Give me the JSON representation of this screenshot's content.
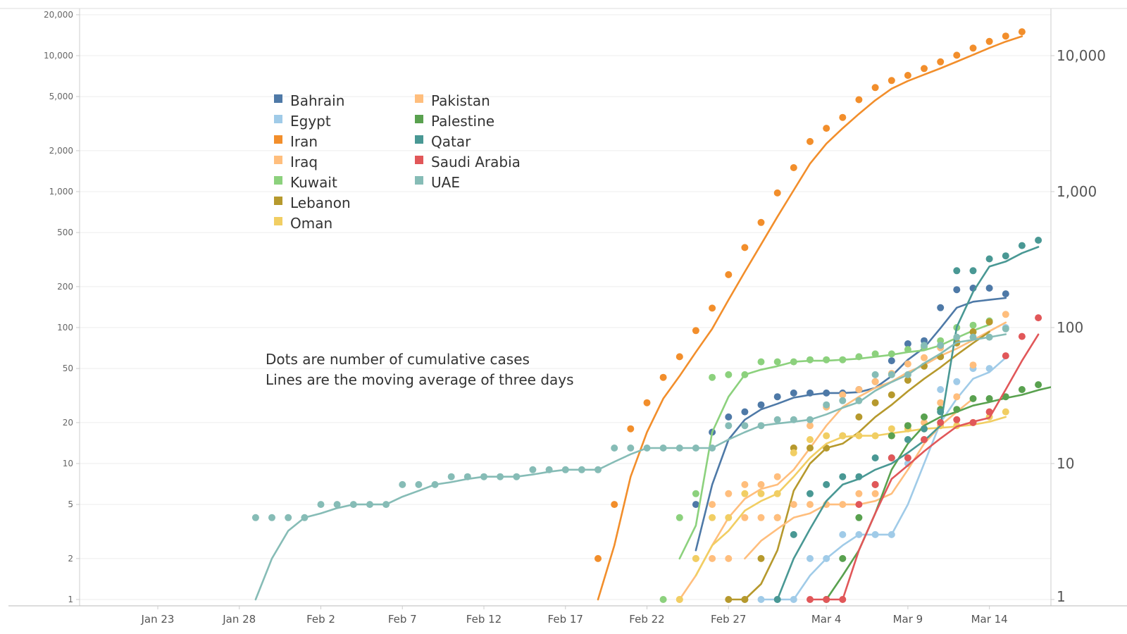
{
  "chart_data": {
    "type": "line",
    "title": "",
    "xlabel": "",
    "ylabel": "",
    "y_scale": "log",
    "ylim": [
      1,
      20000
    ],
    "grid": true,
    "legend_position": "top-left",
    "x_ticks": [
      "Jan 23",
      "Jan 28",
      "Feb 2",
      "Feb 7",
      "Feb 12",
      "Feb 17",
      "Feb 22",
      "Feb 27",
      "Mar 4",
      "Mar 9",
      "Mar 14"
    ],
    "x_tick_dates": [
      "2020-01-23",
      "2020-01-28",
      "2020-02-02",
      "2020-02-07",
      "2020-02-12",
      "2020-02-17",
      "2020-02-22",
      "2020-02-27",
      "2020-03-04",
      "2020-03-09",
      "2020-03-14"
    ],
    "y_ticks_left": [
      "1",
      "2",
      "5",
      "10",
      "20",
      "50",
      "100",
      "200",
      "500",
      "1,000",
      "2,000",
      "5,000",
      "10,000",
      "20,000"
    ],
    "y_ticks_right": [
      "1",
      "10",
      "100",
      "1,000",
      "10,000"
    ],
    "annotations": [
      "Dots are number of cumulative cases",
      "Lines are the moving average of three days"
    ],
    "series": [
      {
        "name": "Bahrain",
        "color": "#4e79a7",
        "start": "2020-02-24",
        "dots": [
          null,
          5,
          17,
          22,
          24,
          27,
          31,
          33,
          33,
          33,
          33,
          35,
          40,
          57,
          76,
          80,
          140,
          190,
          195,
          195,
          177
        ],
        "line": [
          null,
          2.3,
          7,
          15,
          21,
          25,
          27.5,
          30.5,
          32,
          33,
          33,
          33.5,
          36,
          44,
          58,
          71,
          99,
          140,
          155,
          160,
          165
        ]
      },
      {
        "name": "Egypt",
        "color": "#a0cbe8",
        "start": "2020-02-28",
        "dots": [
          1,
          1,
          1,
          1,
          2,
          2,
          3,
          3,
          3,
          3,
          10,
          15,
          35,
          40,
          50,
          50,
          100
        ],
        "line": [
          null,
          1,
          1,
          1,
          1.5,
          2,
          2.5,
          3,
          3,
          3,
          5,
          10,
          20,
          30,
          42,
          47,
          60
        ]
      },
      {
        "name": "Iran",
        "color": "#f28e2b",
        "start": "2020-02-19",
        "dots": [
          2,
          5,
          18,
          28,
          43,
          61,
          95,
          139,
          245,
          388,
          593,
          978,
          1501,
          2336,
          2922,
          3513,
          4747,
          5823,
          6566,
          7161,
          8042,
          9000,
          10075,
          11364,
          12729,
          13938,
          14991
        ],
        "line": [
          1,
          2.5,
          8,
          17,
          30,
          44,
          66,
          98,
          160,
          257,
          409,
          653,
          1024,
          1605,
          2253,
          2924,
          3727,
          4694,
          5712,
          6517,
          7256,
          8068,
          9039,
          10146,
          11389,
          12677,
          13887
        ]
      },
      {
        "name": "Iraq",
        "color": "#ffbe7d",
        "start": "2020-02-24",
        "dots": [
          1,
          2,
          5,
          6,
          7,
          7,
          8,
          13,
          19,
          26,
          32,
          35,
          40,
          46,
          54,
          60,
          71,
          79,
          93,
          110,
          125
        ],
        "line": [
          1,
          1.5,
          2.5,
          4,
          5.5,
          6.5,
          7,
          9,
          13,
          19,
          26,
          31,
          36,
          40,
          47,
          53,
          62,
          70,
          81,
          94,
          109
        ]
      },
      {
        "name": "Kuwait",
        "color": "#8cd17d",
        "start": "2020-02-23",
        "dots": [
          1,
          4,
          6,
          43,
          45,
          45,
          56,
          56,
          56,
          58,
          58,
          58,
          61,
          64,
          64,
          69,
          72,
          80,
          100,
          104,
          112
        ],
        "line": [
          null,
          2,
          3.5,
          17,
          31,
          45,
          49,
          52,
          56,
          57,
          57,
          58,
          59,
          61,
          63,
          66,
          68,
          74,
          84,
          95,
          105
        ]
      },
      {
        "name": "Lebanon",
        "color": "#b6992d",
        "start": "2020-02-27",
        "dots": [
          1,
          1,
          2,
          4,
          13,
          13,
          13,
          16,
          22,
          28,
          32,
          41,
          52,
          61,
          77,
          93,
          110
        ],
        "line": [
          1,
          1,
          1.3,
          2.3,
          6.3,
          10,
          13,
          14,
          17,
          22,
          27,
          34,
          42,
          51,
          63,
          77,
          93
        ]
      },
      {
        "name": "Oman",
        "color": "#f1ce63",
        "start": "2020-02-24",
        "dots": [
          1,
          2,
          4,
          4,
          6,
          6,
          6,
          12,
          15,
          16,
          16,
          16,
          16,
          18,
          18,
          18,
          19,
          19,
          20,
          22,
          24
        ],
        "line": [
          null,
          1.5,
          2.5,
          3.2,
          4.5,
          5.3,
          6,
          8,
          11,
          14,
          15.7,
          16,
          16,
          16.7,
          17.3,
          18,
          18.3,
          18.7,
          19.3,
          20.3,
          22
        ]
      },
      {
        "name": "Pakistan",
        "color": "#ffbe7d",
        "start": "2020-02-26",
        "dots": [
          2,
          2,
          4,
          4,
          4,
          5,
          5,
          5,
          5,
          6,
          6,
          16,
          19,
          20,
          28,
          31,
          53
        ],
        "line": [
          null,
          null,
          2,
          2.7,
          3.3,
          4,
          4.3,
          5,
          5,
          5,
          5.3,
          6,
          9,
          14,
          19,
          24,
          30
        ]
      },
      {
        "name": "Palestine",
        "color": "#59a14f",
        "start": "2020-03-04",
        "dots": [
          1,
          2,
          4,
          7,
          16,
          19,
          22,
          25,
          25,
          30,
          30,
          31,
          35,
          38,
          38,
          38
        ],
        "line": [
          1,
          1.5,
          2.3,
          4.3,
          9,
          14,
          19,
          22,
          24,
          26.7,
          28.3,
          30.3,
          32,
          34.7,
          37,
          38
        ]
      },
      {
        "name": "Qatar",
        "color": "#499894",
        "start": "2020-03-01",
        "dots": [
          1,
          3,
          6,
          7,
          8,
          8,
          11,
          11,
          15,
          18,
          24,
          262,
          262,
          320,
          337,
          401,
          439
        ],
        "line": [
          1,
          2,
          3.3,
          5.3,
          7,
          7.7,
          9,
          10,
          12,
          14.7,
          19,
          101,
          183,
          281,
          306,
          353,
          392
        ]
      },
      {
        "name": "Saudi Arabia",
        "color": "#e15759",
        "start": "2020-03-03",
        "dots": [
          1,
          1,
          1,
          5,
          7,
          11,
          11,
          15,
          20,
          21,
          20,
          24,
          62,
          86,
          118
        ],
        "line": [
          1,
          1,
          1,
          2.3,
          4.3,
          7.7,
          9.7,
          12.3,
          15.3,
          18.7,
          20.3,
          21.7,
          35,
          57,
          89
        ]
      },
      {
        "name": "UAE",
        "color": "#86bcb6",
        "start": "2020-01-29",
        "dots": [
          4,
          4,
          4,
          4,
          5,
          5,
          5,
          5,
          5,
          7,
          7,
          7,
          8,
          8,
          8,
          8,
          8,
          9,
          9,
          9,
          9,
          9,
          13,
          13,
          13,
          13,
          13,
          13,
          13,
          19,
          19,
          19,
          21,
          21,
          21,
          27,
          29,
          29,
          45,
          45,
          45,
          74,
          74,
          85,
          85,
          85,
          98
        ],
        "line": [
          1,
          2,
          3.2,
          4,
          4.3,
          4.7,
          5,
          5,
          5,
          5.7,
          6.3,
          7,
          7.3,
          7.7,
          8,
          8,
          8,
          8.3,
          8.7,
          9,
          9,
          9,
          10.3,
          11.7,
          13,
          13,
          13,
          13,
          13,
          15,
          17,
          19,
          19.7,
          20.3,
          21,
          23,
          25.7,
          28.3,
          34.3,
          39.7,
          45,
          54.7,
          64.3,
          77.7,
          81.3,
          85,
          89.3
        ]
      }
    ]
  }
}
